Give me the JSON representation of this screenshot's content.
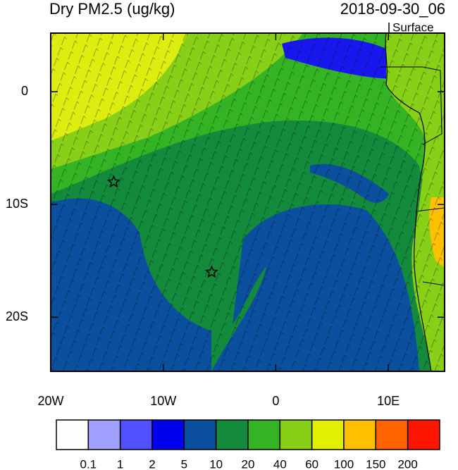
{
  "chart_data": {
    "type": "map",
    "title": "Dry PM2.5 (ug/kg)",
    "time": "2018-09-30_06",
    "level": "Surface",
    "xlim": [
      -20,
      15
    ],
    "ylim": [
      -24.8,
      5.2
    ],
    "xticks": [
      {
        "value": -20,
        "label": "20W"
      },
      {
        "value": -10,
        "label": "10W"
      },
      0,
      {
        "value": 10,
        "label": "10E"
      }
    ],
    "yticks": [
      0,
      {
        "value": -10,
        "label": "10S"
      },
      {
        "value": -20,
        "label": "20S"
      }
    ],
    "markers": [
      {
        "lon": -14.4,
        "lat": -8.0
      },
      {
        "lon": -5.7,
        "lat": -16.0
      }
    ],
    "colorbar": {
      "levels": [
        0.1,
        1,
        2,
        5,
        10,
        20,
        40,
        60,
        100,
        150,
        200
      ],
      "colors": [
        "#fefefe",
        "#a0a0ff",
        "#5050ff",
        "#0000ee",
        "#0a509e",
        "#138a3c",
        "#34b424",
        "#88d018",
        "#e0f000",
        "#ffc000",
        "#ff6400",
        "#ff1400"
      ]
    }
  }
}
